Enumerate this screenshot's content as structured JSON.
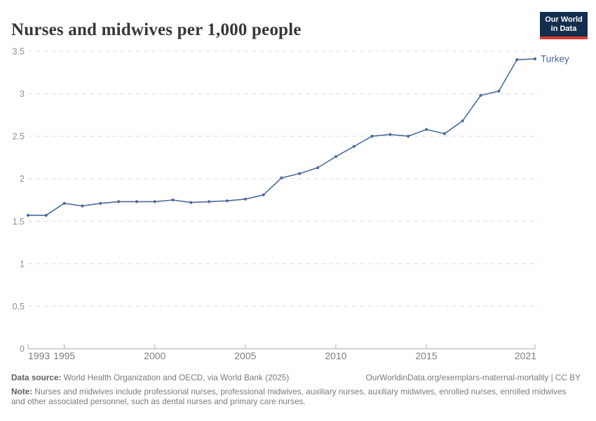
{
  "header": {
    "title": "Nurses and midwives per 1,000 people"
  },
  "logo": {
    "line1": "Our World",
    "line2": "in Data",
    "bg_color": "#132e4f",
    "bar_color": "#dc3b32"
  },
  "chart_data": {
    "type": "line",
    "title": "Nurses and midwives per 1,000 people",
    "x": [
      1993,
      1994,
      1995,
      1996,
      1997,
      1998,
      1999,
      2000,
      2001,
      2002,
      2003,
      2004,
      2005,
      2006,
      2007,
      2008,
      2009,
      2010,
      2011,
      2012,
      2013,
      2014,
      2015,
      2016,
      2017,
      2018,
      2019,
      2020,
      2021
    ],
    "series": [
      {
        "name": "Turkey",
        "color": "#4C6A9C",
        "values": [
          1.57,
          1.57,
          1.71,
          1.68,
          1.71,
          1.73,
          1.73,
          1.73,
          1.75,
          1.72,
          1.73,
          1.74,
          1.76,
          1.81,
          2.01,
          2.06,
          2.13,
          2.26,
          2.38,
          2.5,
          2.52,
          2.5,
          2.58,
          2.53,
          2.68,
          2.98,
          3.03,
          3.4,
          3.41
        ]
      }
    ],
    "xlabel": "",
    "ylabel": "",
    "ylim": [
      0,
      3.5
    ],
    "xlim": [
      1993,
      2021
    ],
    "yticks": [
      0,
      0.5,
      1,
      1.5,
      2,
      2.5,
      3,
      3.5
    ],
    "ytick_labels": [
      "0",
      "0.5",
      "1",
      "1.5",
      "2",
      "2.5",
      "3",
      "3.5"
    ],
    "xtick_labels": [
      {
        "year": 1993,
        "label": "1993"
      },
      {
        "year": 1995,
        "label": "1995"
      },
      {
        "year": 2000,
        "label": "2000"
      },
      {
        "year": 2005,
        "label": "2005"
      },
      {
        "year": 2010,
        "label": "2010"
      },
      {
        "year": 2015,
        "label": "2015"
      },
      {
        "year": 2021,
        "label": "2021"
      }
    ],
    "xtick_marks": [
      1995,
      2000,
      2005,
      2010,
      2015,
      2021
    ],
    "grid": "dashed horizontal",
    "legend_position": "end-of-line"
  },
  "colors": {
    "line": "#4C6A9C",
    "grid": "#dedede",
    "axis": "#a8a8a8",
    "y_tick_label": "#8f8f8f",
    "x_tick_label": "#7d7d7d"
  },
  "footer": {
    "datasource_label": "Data source:",
    "datasource_text": " World Health Organization and OECD, via World Bank (2025)",
    "link_text": "OurWorldinData.org/exemplars-maternal-mortality | CC BY",
    "note_label": "Note:",
    "note_text": " Nurses and midwives include professional nurses, professional midwives, auxiliary nurses, auxiliary midwives, enrolled nurses, enrolled midwives and other associated personnel, such as dental nurses and primary care nurses."
  }
}
